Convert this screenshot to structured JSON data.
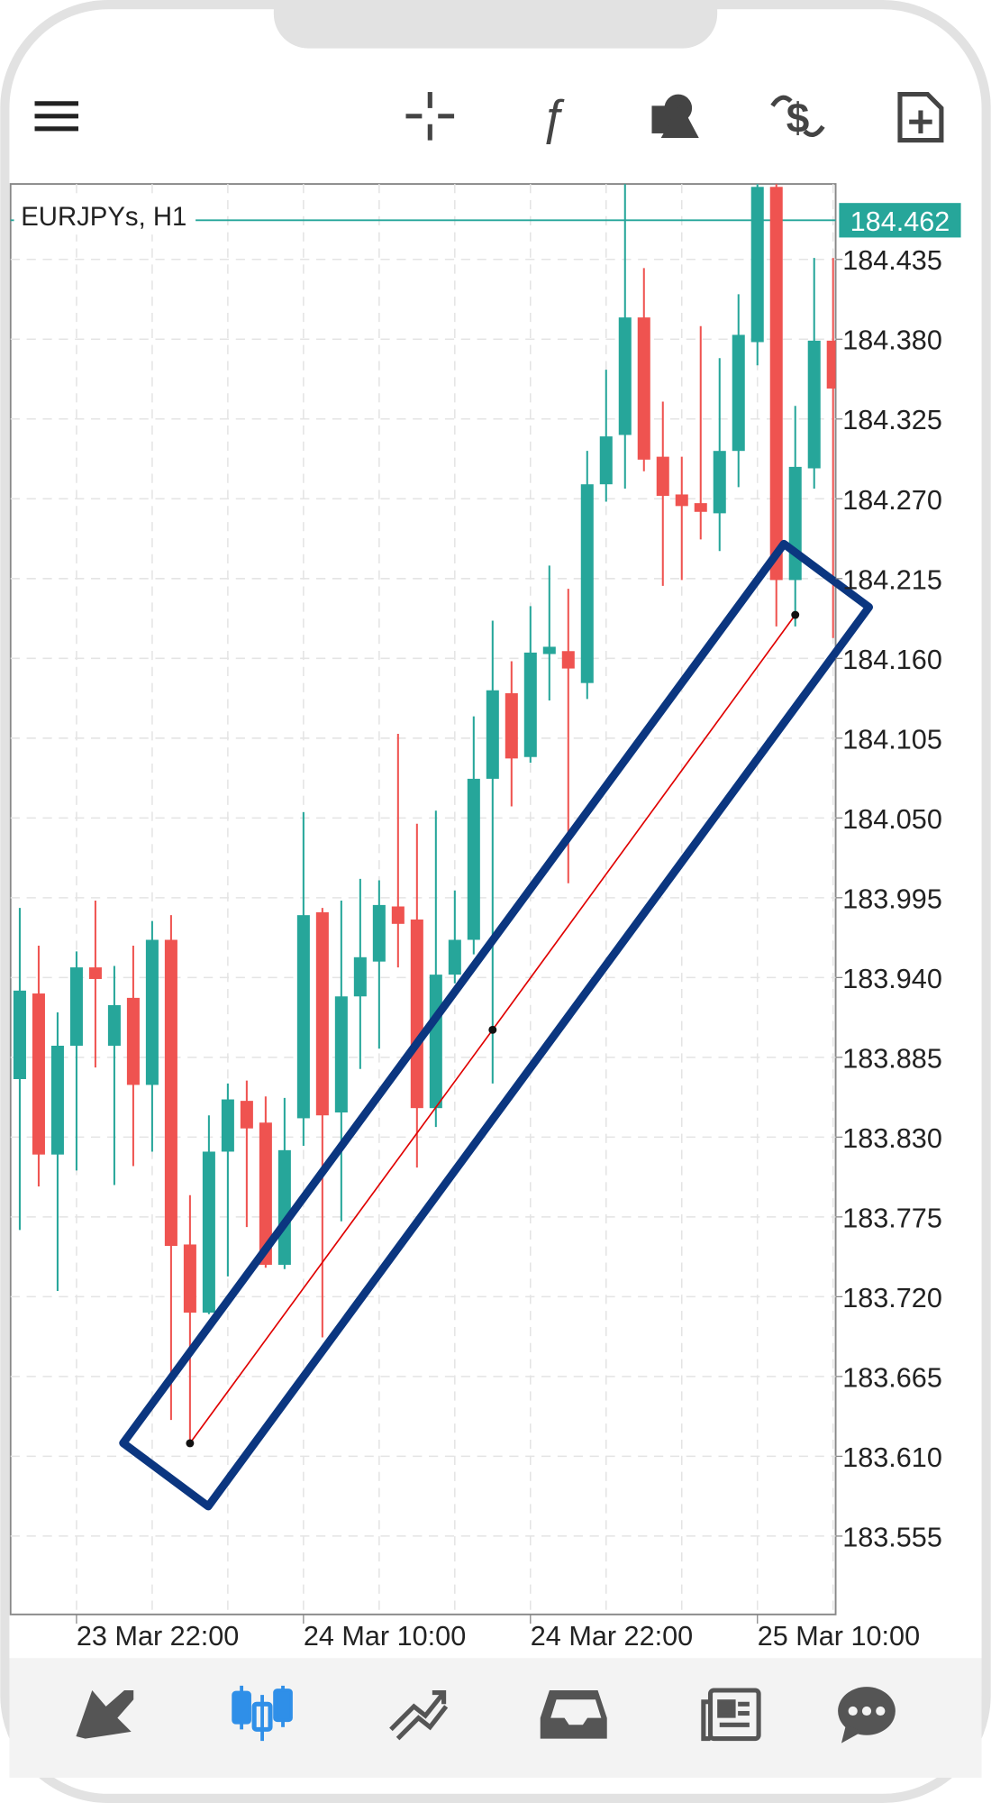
{
  "chart_data": {
    "type": "candlestick",
    "title": "EURJPYs, H1",
    "categories": [
      null,
      null,
      null,
      "23 Mar 22:00",
      null,
      null,
      null,
      null,
      null,
      null,
      null,
      null,
      null,
      null,
      null,
      "24 Mar 10:00",
      null,
      null,
      null,
      null,
      null,
      null,
      null,
      null,
      null,
      null,
      null,
      "24 Mar 22:00",
      null,
      null,
      null,
      null,
      null,
      null,
      null,
      null,
      null,
      null,
      null,
      "25 Mar 10:00",
      null,
      null,
      null,
      null
    ],
    "open": [
      183.87,
      183.929,
      183.818,
      183.893,
      183.947,
      183.893,
      183.926,
      183.866,
      183.966,
      183.756,
      183.709,
      183.82,
      183.855,
      183.84,
      183.742,
      183.843,
      183.985,
      183.847,
      183.927,
      183.951,
      183.989,
      183.98,
      183.85,
      183.942,
      183.966,
      184.077,
      184.136,
      184.092,
      184.163,
      184.165,
      184.143,
      184.28,
      184.314,
      184.395,
      184.299,
      184.273,
      184.267,
      184.26,
      184.303,
      184.378,
      184.485,
      184.214,
      184.291,
      184.379
    ],
    "high": [
      183.988,
      183.962,
      183.916,
      183.958,
      183.993,
      183.948,
      183.962,
      183.979,
      183.983,
      183.79,
      183.845,
      183.867,
      183.869,
      183.858,
      183.857,
      184.054,
      183.988,
      183.993,
      184.008,
      184.007,
      184.108,
      184.046,
      184.055,
      184.0,
      184.12,
      184.186,
      184.158,
      184.196,
      184.224,
      184.208,
      184.303,
      184.359,
      184.487,
      184.429,
      184.337,
      184.299,
      184.389,
      184.367,
      184.411,
      184.487,
      184.487,
      184.334,
      184.436,
      184.436
    ],
    "low": [
      183.766,
      183.796,
      183.724,
      183.807,
      183.878,
      183.797,
      183.81,
      183.82,
      183.635,
      183.619,
      183.708,
      183.734,
      183.768,
      183.74,
      183.739,
      183.824,
      183.692,
      183.772,
      183.877,
      183.891,
      183.947,
      183.809,
      183.837,
      183.936,
      183.956,
      183.867,
      184.058,
      184.088,
      184.131,
      184.005,
      184.132,
      184.268,
      184.277,
      184.289,
      184.21,
      184.214,
      184.242,
      184.234,
      184.278,
      184.362,
      184.182,
      184.182,
      184.277,
      184.174
    ],
    "close": [
      183.931,
      183.818,
      183.893,
      183.947,
      183.939,
      183.921,
      183.866,
      183.966,
      183.755,
      183.709,
      183.82,
      183.856,
      183.836,
      183.742,
      183.821,
      183.983,
      183.845,
      183.927,
      183.954,
      183.99,
      183.977,
      183.85,
      183.942,
      183.966,
      184.077,
      184.138,
      184.091,
      184.164,
      184.168,
      184.153,
      184.28,
      184.313,
      184.395,
      184.297,
      184.272,
      184.265,
      184.261,
      184.303,
      184.383,
      184.485,
      184.214,
      184.292,
      184.379,
      184.346
    ],
    "up_color": "#26a69a",
    "down_color": "#ef5350",
    "ylim": [
      183.501,
      184.487
    ],
    "yticks": [
      184.435,
      {
        "value": 184.38,
        "label": "184.380"
      },
      184.325,
      {
        "value": 184.27,
        "label": "184.270"
      },
      184.215,
      {
        "value": 184.16,
        "label": "184.160"
      },
      184.105,
      {
        "value": 184.05,
        "label": "184.050"
      },
      183.995,
      {
        "value": 183.94,
        "label": "183.940"
      },
      183.885,
      {
        "value": 183.83,
        "label": "183.830"
      },
      183.775,
      {
        "value": 183.72,
        "label": "183.720"
      },
      183.665,
      {
        "value": 183.61,
        "label": "183.610"
      },
      183.555
    ],
    "grid": true,
    "last_price": 184.462,
    "last_price_color": "#26a69a",
    "trendline": {
      "x": [
        9,
        25,
        41
      ],
      "values": [
        183.619,
        183.904,
        184.19
      ],
      "color": "#e00000"
    }
  }
}
